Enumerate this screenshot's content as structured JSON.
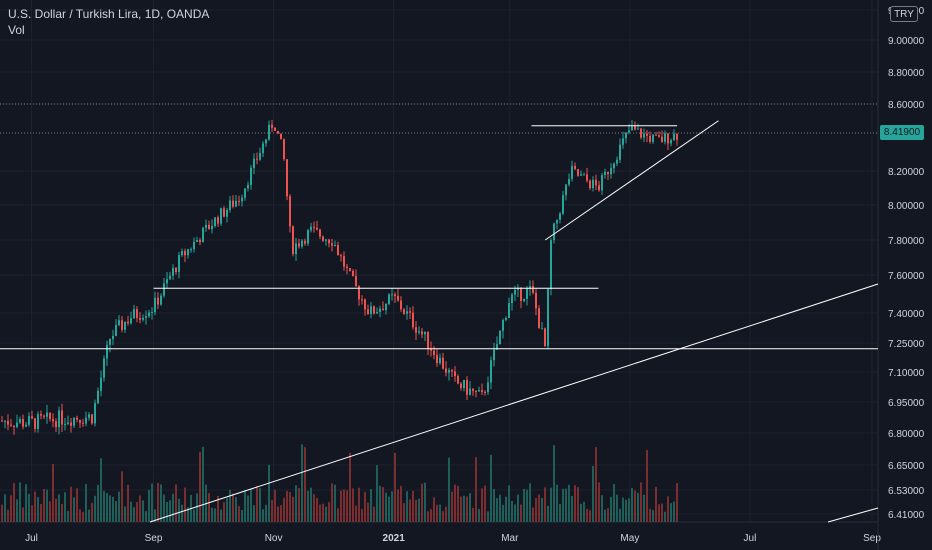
{
  "legend": {
    "title": "U.S. Dollar / Turkish Lira, 1D, OANDA",
    "volume_label": "Vol"
  },
  "currency_badge": "TRY",
  "last_price": "8.41900",
  "colors": {
    "background": "#131722",
    "grid": "#1e222d",
    "up": "#26a69a",
    "down": "#ef5350",
    "up_volume": "#1f5f5a",
    "down_volume": "#7a2e30",
    "text": "#d1d4dc",
    "axis_text": "#d1d4dc",
    "drawing": "#ffffff",
    "price_tag_bg": "#26a69a"
  },
  "chart_data": {
    "type": "candlestick",
    "title": "U.S. Dollar / Turkish Lira, 1D, OANDA",
    "xlabel": "",
    "ylabel": "",
    "y_ticks": [
      "9.20000",
      "9.00000",
      "8.80000",
      "8.60000",
      "8.20000",
      "8.00000",
      "7.80000",
      "7.60000",
      "7.40000",
      "7.25000",
      "7.10000",
      "6.95000",
      "6.80000",
      "6.65000",
      "6.53000",
      "6.41000"
    ],
    "x_ticks": [
      "Jul",
      "Sep",
      "Nov",
      "2021",
      "Mar",
      "May",
      "Jul",
      "Sep"
    ],
    "ylim": [
      6.41,
      9.2
    ],
    "grid": true,
    "x": [
      "2020-06-15",
      "2020-07-01",
      "2020-07-15",
      "2020-08-01",
      "2020-08-10",
      "2020-08-20",
      "2020-09-01",
      "2020-09-15",
      "2020-10-01",
      "2020-10-15",
      "2020-11-01",
      "2020-11-06",
      "2020-11-10",
      "2020-11-20",
      "2020-12-01",
      "2020-12-10",
      "2020-12-20",
      "2021-01-01",
      "2021-01-15",
      "2021-02-01",
      "2021-02-15",
      "2021-03-01",
      "2021-03-12",
      "2021-03-19",
      "2021-03-22",
      "2021-04-01",
      "2021-04-15",
      "2021-05-01",
      "2021-05-15",
      "2021-05-25"
    ],
    "close": [
      6.86,
      6.85,
      6.87,
      6.88,
      7.28,
      7.38,
      7.43,
      7.7,
      7.9,
      8.05,
      8.5,
      8.3,
      7.75,
      7.85,
      7.8,
      7.58,
      7.4,
      7.48,
      7.3,
      7.05,
      6.97,
      7.48,
      7.52,
      7.22,
      7.8,
      8.2,
      8.1,
      8.45,
      8.38,
      8.42
    ],
    "annotations": []
  }
}
